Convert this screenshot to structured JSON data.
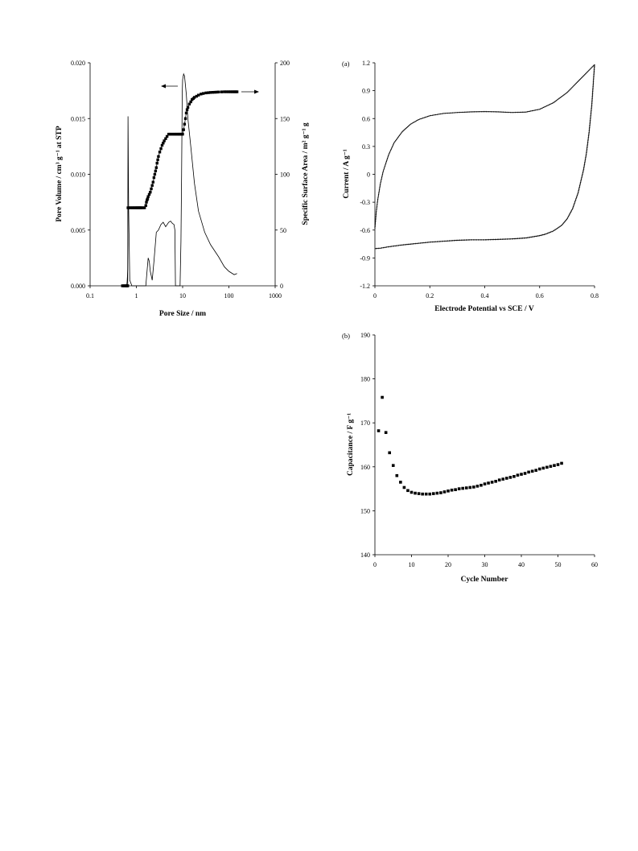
{
  "chart_data": [
    {
      "type": "line",
      "xlabel": "Pore Size / nm",
      "xscale": "log",
      "xlim": [
        0.1,
        1000
      ],
      "xticks": [
        "0.1",
        "1",
        "10",
        "100",
        "1000"
      ],
      "ylabel_left": "Pore Volume / cm³ g⁻¹ at STP",
      "ylim_left": [
        0,
        0.02
      ],
      "yticks_left": [
        "0.000",
        "0.005",
        "0.010",
        "0.015",
        "0.020"
      ],
      "ylabel_right": "Specific Surface Area / m² g⁻¹ g",
      "ylim_right": [
        0,
        200
      ],
      "yticks_right": [
        "0",
        "50",
        "100",
        "150",
        "200"
      ],
      "grid": false,
      "legend": "none",
      "annotations": [
        {
          "type": "arrow",
          "direction": "left",
          "meaning": "pore volume curve uses left axis"
        },
        {
          "type": "arrow",
          "direction": "right",
          "meaning": "surface area curve uses right axis"
        }
      ],
      "series": [
        {
          "axis": "left",
          "style": "line",
          "x": [
            0.5,
            0.55,
            0.6,
            0.62,
            0.63,
            0.64,
            0.65,
            0.66,
            0.68,
            0.72,
            0.8,
            0.9,
            1.0,
            1.3,
            1.6,
            1.7,
            1.8,
            1.9,
            2.0,
            2.2,
            2.4,
            2.7,
            3.0,
            3.4,
            3.8,
            4.3,
            5.0,
            5.5,
            6.0,
            6.5,
            6.8,
            7.0,
            7.5,
            8.2,
            8.8,
            9.2,
            9.5,
            9.8,
            10.0,
            10.5,
            11,
            12,
            13,
            15,
            18,
            22,
            30,
            40,
            60,
            80,
            100,
            130,
            150
          ],
          "y": [
            0.0,
            0.0,
            0.0,
            0.0001,
            0.0003,
            0.0008,
            0.0015,
            0.0152,
            0.007,
            0.0005,
            0.0,
            0.0,
            0.0,
            0.0,
            0.0,
            0.0013,
            0.0025,
            0.0022,
            0.0013,
            0.0005,
            0.0022,
            0.0048,
            0.005,
            0.0055,
            0.0057,
            0.0053,
            0.0057,
            0.0058,
            0.0056,
            0.0055,
            0.005,
            0.0,
            0.0,
            0.0,
            0.0,
            0.004,
            0.01,
            0.0172,
            0.0185,
            0.019,
            0.0188,
            0.0172,
            0.015,
            0.0125,
            0.0092,
            0.0067,
            0.0048,
            0.0037,
            0.0026,
            0.0017,
            0.0013,
            0.001,
            0.0011
          ]
        },
        {
          "axis": "right",
          "style": "square-markers",
          "x": [
            0.5,
            0.52,
            0.55,
            0.58,
            0.6,
            0.62,
            0.64,
            0.65,
            0.66,
            0.7,
            0.75,
            0.8,
            0.85,
            0.9,
            0.95,
            1.0,
            1.05,
            1.1,
            1.15,
            1.2,
            1.25,
            1.3,
            1.4,
            1.5,
            1.6,
            1.65,
            1.7,
            1.75,
            1.8,
            1.9,
            2.0,
            2.1,
            2.2,
            2.3,
            2.4,
            2.5,
            2.6,
            2.7,
            2.8,
            2.9,
            3.0,
            3.2,
            3.4,
            3.6,
            3.8,
            4.0,
            4.3,
            4.6,
            5.0,
            5.3,
            5.6,
            6.0,
            6.4,
            6.8,
            7.2,
            7.6,
            8.0,
            8.4,
            8.8,
            9.2,
            9.6,
            10,
            10.5,
            11,
            11.5,
            12,
            12.5,
            13,
            14,
            15,
            16,
            17,
            18,
            20,
            22,
            25,
            28,
            32,
            36,
            40,
            45,
            50,
            55,
            60,
            70,
            80,
            90,
            100,
            110,
            120,
            130,
            140,
            150
          ],
          "y": [
            0,
            0,
            0,
            0,
            0,
            0,
            0,
            0,
            70,
            70,
            70,
            70,
            70,
            70,
            70,
            70,
            70,
            70,
            70,
            70,
            70,
            70,
            70,
            70,
            72,
            75,
            77,
            78,
            80,
            82,
            84,
            87,
            90,
            93,
            97,
            100,
            103,
            106,
            110,
            113,
            116,
            120,
            123,
            126,
            128,
            130,
            132,
            134,
            136,
            136,
            136,
            136,
            136,
            136,
            136,
            136,
            136,
            136,
            136,
            136,
            136,
            136,
            140,
            145,
            150,
            155,
            158,
            160,
            163,
            165,
            167,
            168,
            169,
            170,
            171,
            172,
            172.5,
            173,
            173.2,
            173.4,
            173.5,
            173.6,
            173.7,
            173.8,
            173.9,
            174,
            174,
            174,
            174,
            174,
            174,
            174,
            174
          ]
        }
      ]
    },
    {
      "type": "line",
      "panel_label": "(a)",
      "xlabel": "Electrode Potential vs SCE / V",
      "ylabel": "Current / A g⁻¹",
      "xlim": [
        0,
        0.8
      ],
      "ylim": [
        -1.2,
        1.2
      ],
      "xticks": [
        "0",
        "0.2",
        "0.4",
        "0.6",
        "0.8"
      ],
      "yticks": [
        "-1.2",
        "-0.9",
        "-0.6",
        "-0.3",
        "0",
        "0.3",
        "0.6",
        "0.9",
        "1.2"
      ],
      "grid": false,
      "legend": "none",
      "series": [
        {
          "style": "line",
          "segment": "anodic",
          "x": [
            0.0,
            0.005,
            0.01,
            0.02,
            0.03,
            0.05,
            0.07,
            0.1,
            0.13,
            0.16,
            0.2,
            0.25,
            0.3,
            0.35,
            0.4,
            0.45,
            0.5,
            0.55,
            0.6,
            0.65,
            0.7,
            0.72,
            0.74,
            0.76,
            0.78,
            0.8
          ],
          "y": [
            -0.58,
            -0.4,
            -0.28,
            -0.1,
            0.03,
            0.21,
            0.34,
            0.46,
            0.54,
            0.59,
            0.63,
            0.655,
            0.665,
            0.672,
            0.675,
            0.672,
            0.665,
            0.67,
            0.7,
            0.77,
            0.88,
            0.94,
            1.0,
            1.06,
            1.12,
            1.18
          ]
        },
        {
          "style": "line",
          "segment": "cathodic",
          "x": [
            0.8,
            0.79,
            0.78,
            0.77,
            0.76,
            0.74,
            0.72,
            0.7,
            0.68,
            0.65,
            0.62,
            0.6,
            0.55,
            0.5,
            0.45,
            0.4,
            0.35,
            0.3,
            0.25,
            0.2,
            0.15,
            0.1,
            0.05,
            0.02,
            0.0
          ],
          "y": [
            1.18,
            0.75,
            0.45,
            0.22,
            0.05,
            -0.2,
            -0.37,
            -0.48,
            -0.55,
            -0.61,
            -0.645,
            -0.66,
            -0.685,
            -0.695,
            -0.7,
            -0.705,
            -0.705,
            -0.71,
            -0.72,
            -0.73,
            -0.745,
            -0.76,
            -0.78,
            -0.795,
            -0.8
          ]
        }
      ]
    },
    {
      "type": "scatter",
      "panel_label": "(b)",
      "xlabel": "Cycle Number",
      "ylabel": "Capacitance / F g⁻¹",
      "xlim": [
        0,
        60
      ],
      "ylim": [
        140,
        190
      ],
      "xticks": [
        "0",
        "10",
        "20",
        "30",
        "40",
        "50",
        "60"
      ],
      "yticks": [
        "140",
        "150",
        "160",
        "170",
        "180",
        "190"
      ],
      "grid": false,
      "legend": "none",
      "series": [
        {
          "style": "square-markers",
          "x": [
            1,
            2,
            3,
            4,
            5,
            6,
            7,
            8,
            9,
            10,
            11,
            12,
            13,
            14,
            15,
            16,
            17,
            18,
            19,
            20,
            21,
            22,
            23,
            24,
            25,
            26,
            27,
            28,
            29,
            30,
            31,
            32,
            33,
            34,
            35,
            36,
            37,
            38,
            39,
            40,
            41,
            42,
            43,
            44,
            45,
            46,
            47,
            48,
            49,
            50,
            51
          ],
          "y": [
            168.2,
            175.8,
            167.8,
            163.2,
            160.3,
            158.0,
            156.5,
            155.3,
            154.6,
            154.2,
            154.0,
            153.9,
            153.8,
            153.8,
            153.8,
            153.9,
            154.0,
            154.1,
            154.3,
            154.5,
            154.7,
            154.8,
            155.0,
            155.1,
            155.2,
            155.3,
            155.4,
            155.6,
            155.8,
            156.1,
            156.3,
            156.5,
            156.7,
            157.0,
            157.2,
            157.4,
            157.6,
            157.8,
            158.1,
            158.3,
            158.5,
            158.8,
            159.0,
            159.2,
            159.5,
            159.7,
            159.9,
            160.1,
            160.3,
            160.5,
            160.8
          ]
        }
      ]
    }
  ]
}
